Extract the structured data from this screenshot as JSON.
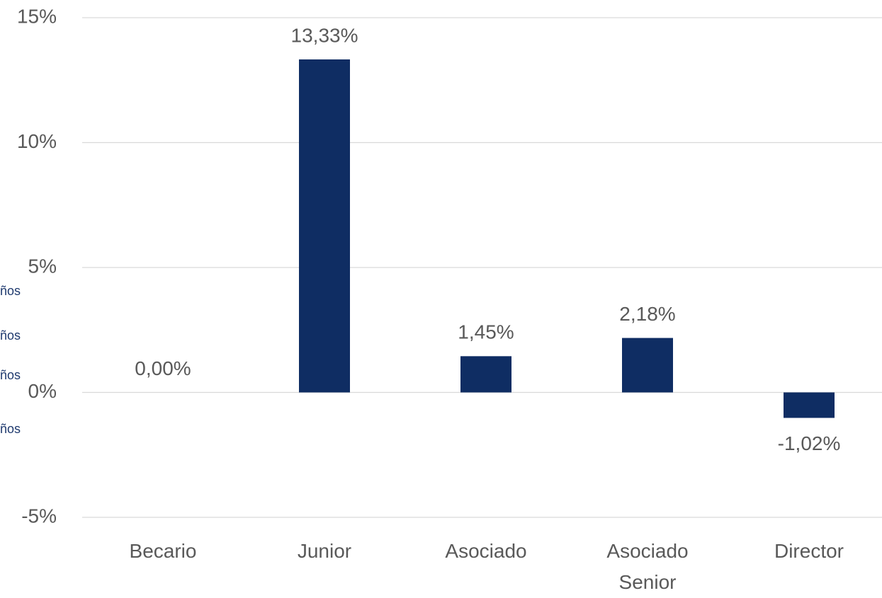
{
  "chart_data": {
    "type": "bar",
    "categories": [
      "Becario",
      "Junior",
      "Asociado",
      "Asociado Senior",
      "Director"
    ],
    "values": [
      0,
      13.33,
      1.45,
      2.18,
      -1.02
    ],
    "value_labels": [
      "0,00%",
      "13,33%",
      "1,45%",
      "2,18%",
      "-1,02%"
    ],
    "color": "#0f2d63",
    "ylim": [
      -5,
      15
    ],
    "yticks": [
      {
        "value": -5,
        "label": "-5%"
      },
      {
        "value": 0,
        "label": "0%"
      },
      {
        "value": 5,
        "label": "5%"
      },
      {
        "value": 10,
        "label": "10%"
      },
      {
        "value": 15,
        "label": "15%"
      }
    ],
    "grid": true,
    "annotations": [
      "ños",
      "ños",
      "ños",
      "ños"
    ]
  }
}
